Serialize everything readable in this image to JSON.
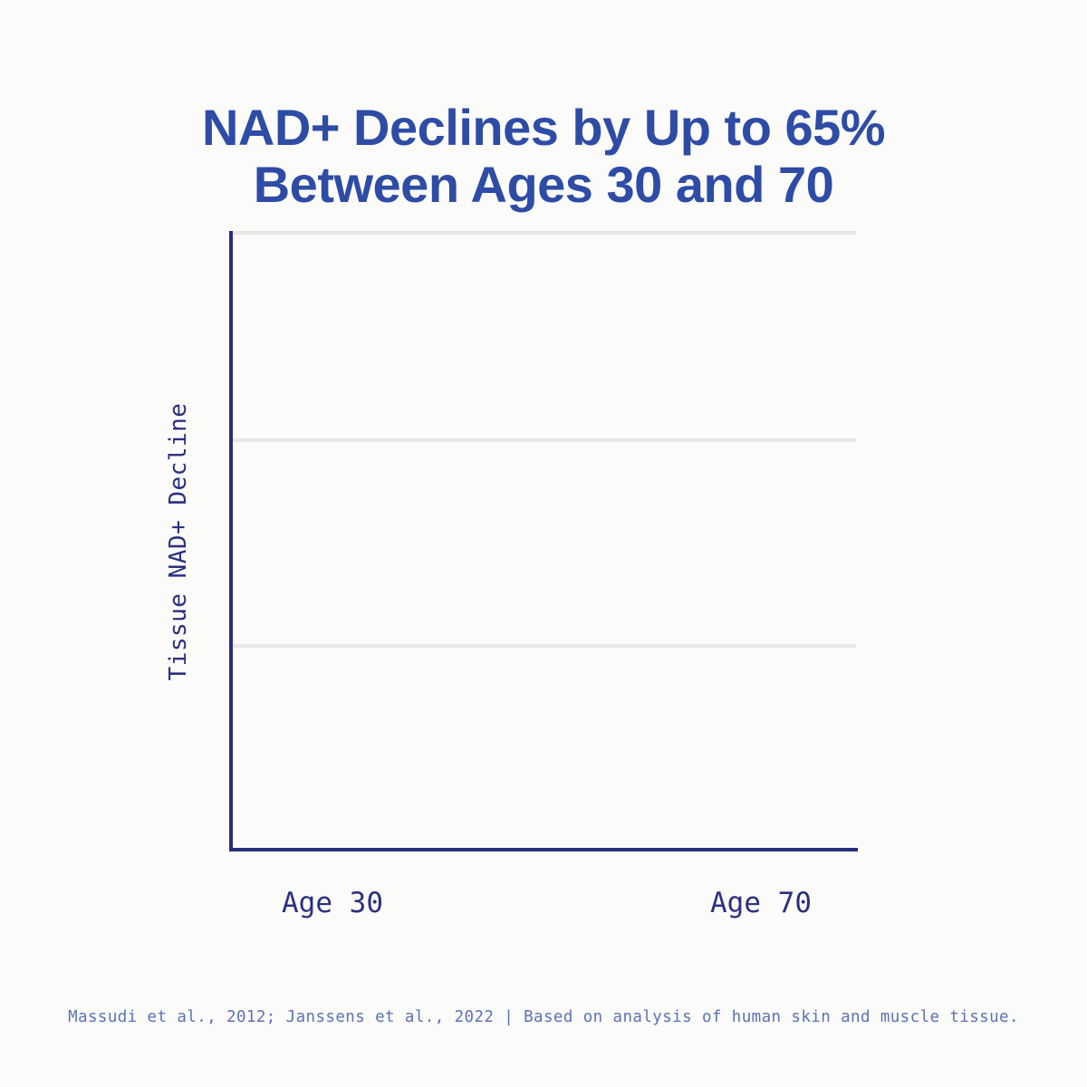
{
  "title": {
    "line1": "NAD+ Declines by Up to 65%",
    "line2": "Between Ages 30 and 70"
  },
  "chart_data": {
    "type": "bar",
    "title": "NAD+ Declines by Up to 65% Between Ages 30 and 70",
    "categories": [
      "Age 30",
      "Age 70"
    ],
    "series": [
      {
        "name": "Tissue NAD+ Decline",
        "values": [
          null,
          null
        ]
      }
    ],
    "xlabel": "",
    "ylabel": "Tissue NAD+ Decline",
    "grid": true,
    "y_gridlines": 3,
    "legend": false,
    "note": "Empty plot frame: axes and gridlines are drawn but no bars are rendered in this frame"
  },
  "footer": {
    "text": "Massudi et al., 2012; Janssens et al., 2022 | Based on analysis of human skin and muscle tissue."
  },
  "colors": {
    "title_blue": "#2e4ca5",
    "axis_navy": "#292e7a",
    "tick_label_navy": "#2b3080",
    "gridline_gray": "#e7e7e6",
    "footer_blue": "#5b72b7",
    "background": "#fbfbfa"
  }
}
